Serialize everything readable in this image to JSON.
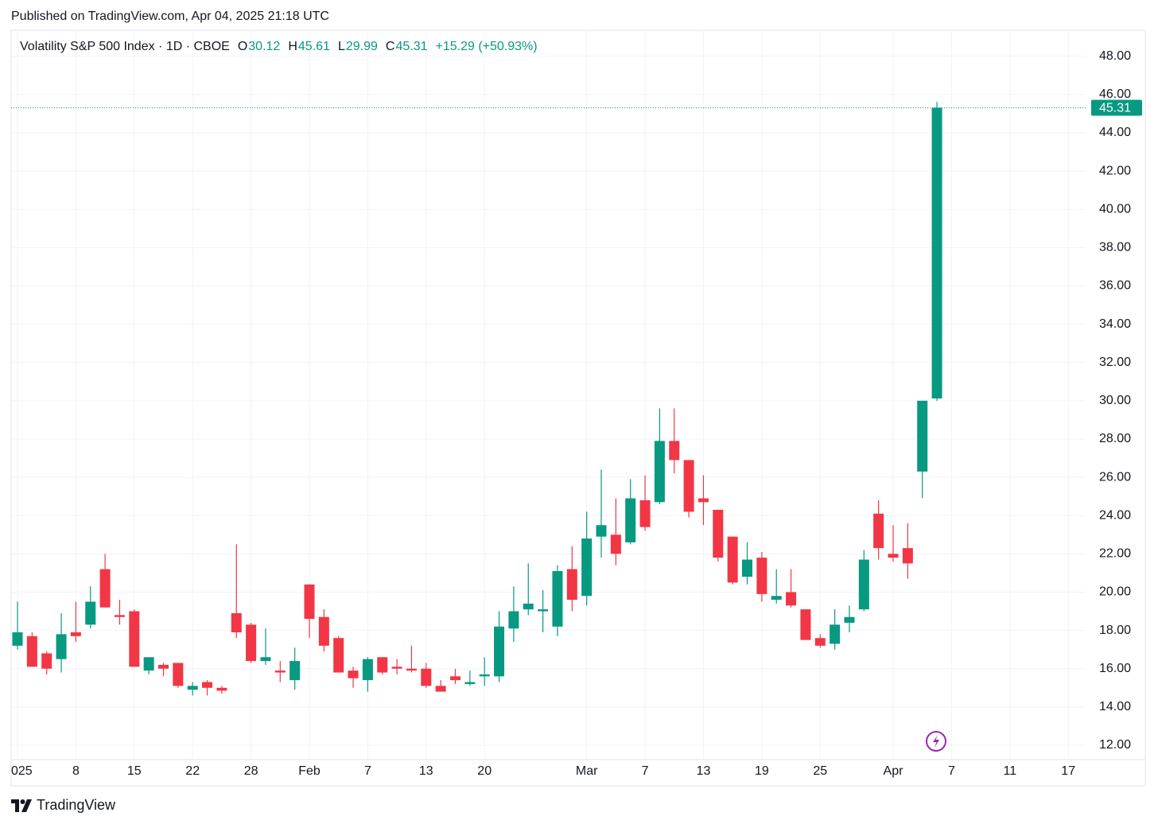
{
  "publisher": "Published on TradingView.com, Apr 04, 2025 21:18 UTC",
  "brand": "TradingView",
  "chart_data": {
    "type": "candlestick",
    "title": "Volatility S&P 500 Index · 1D · CBOE",
    "ohlc_letters": [
      "O",
      "H",
      "L",
      "C"
    ],
    "change": "+15.29 (+50.93%)",
    "up_color": "#089981",
    "down_color": "#f23645",
    "grid": true,
    "ylim": [
      11.25,
      49.36
    ],
    "yticks": [
      {
        "value": 12,
        "label": "12.00"
      },
      {
        "value": 14,
        "label": "14.00"
      },
      {
        "value": 16,
        "label": "16.00"
      },
      {
        "value": 18,
        "label": "18.00"
      },
      {
        "value": 20,
        "label": "20.00"
      },
      {
        "value": 22,
        "label": "22.00"
      },
      {
        "value": 24,
        "label": "24.00"
      },
      {
        "value": 26,
        "label": "26.00"
      },
      {
        "value": 28,
        "label": "28.00"
      },
      {
        "value": 30,
        "label": "30.00"
      },
      {
        "value": 32,
        "label": "32.00"
      },
      {
        "value": 34,
        "label": "34.00"
      },
      {
        "value": 36,
        "label": "36.00"
      },
      {
        "value": 38,
        "label": "38.00"
      },
      {
        "value": 40,
        "label": "40.00"
      },
      {
        "value": 42,
        "label": "42.00"
      },
      {
        "value": 44,
        "label": "44.00"
      },
      {
        "value": 46,
        "label": "46.00"
      },
      {
        "value": 48,
        "label": "48.00"
      }
    ],
    "categories": [
      "025",
      null,
      null,
      null,
      "8",
      null,
      null,
      null,
      "15",
      null,
      null,
      null,
      "22",
      null,
      null,
      null,
      "28",
      null,
      null,
      null,
      "Feb",
      null,
      null,
      null,
      "7",
      null,
      null,
      null,
      "13",
      null,
      null,
      null,
      "20",
      null,
      null,
      null,
      null,
      null,
      null,
      "Mar",
      null,
      null,
      null,
      "7",
      null,
      null,
      null,
      "13",
      null,
      null,
      null,
      "19",
      null,
      null,
      null,
      "25",
      null,
      null,
      null,
      null,
      "Apr",
      null,
      null,
      null,
      "7",
      null,
      null,
      null,
      "11",
      null,
      null,
      null,
      "17"
    ],
    "open": [
      17.2,
      17.7,
      16.8,
      16.5,
      17.9,
      18.3,
      21.2,
      18.8,
      19.0,
      15.9,
      16.2,
      16.3,
      14.9,
      15.3,
      15.0,
      18.9,
      18.3,
      16.4,
      15.9,
      15.4,
      20.4,
      18.7,
      17.6,
      15.9,
      15.4,
      16.6,
      16.1,
      16.0,
      16.0,
      15.1,
      15.6,
      15.2,
      15.6,
      15.6,
      18.1,
      19.1,
      19.0,
      18.2,
      21.2,
      19.8,
      22.9,
      23.0,
      22.6,
      24.8,
      24.7,
      27.9,
      26.9,
      24.9,
      24.3,
      22.9,
      20.8,
      21.8,
      19.6,
      20.0,
      19.1,
      17.6,
      17.3,
      18.4,
      19.1,
      24.1,
      22.0,
      22.3,
      26.3,
      30.12,
      null,
      null,
      null,
      null,
      null,
      null,
      null,
      null,
      null
    ],
    "high": [
      19.5,
      17.9,
      16.9,
      18.9,
      19.5,
      20.3,
      22.0,
      19.6,
      19.1,
      16.6,
      16.3,
      16.3,
      15.3,
      15.4,
      15.1,
      22.5,
      18.4,
      18.1,
      16.4,
      17.1,
      20.4,
      19.1,
      17.7,
      16.1,
      16.6,
      16.6,
      16.5,
      17.2,
      16.3,
      15.4,
      16.0,
      15.9,
      16.6,
      19.0,
      20.3,
      21.5,
      20.1,
      21.4,
      22.4,
      24.2,
      26.4,
      24.9,
      25.9,
      26.1,
      29.6,
      29.6,
      26.9,
      26.1,
      24.3,
      22.9,
      22.6,
      22.1,
      21.2,
      21.2,
      19.1,
      17.8,
      19.1,
      19.3,
      22.2,
      24.8,
      23.5,
      23.6,
      30.0,
      45.61,
      null,
      null,
      null,
      null,
      null,
      null,
      null,
      null,
      null
    ],
    "low": [
      17.0,
      16.1,
      15.7,
      15.8,
      17.4,
      18.1,
      19.2,
      18.3,
      16.1,
      15.7,
      15.6,
      15.0,
      14.6,
      14.6,
      14.7,
      17.6,
      16.3,
      16.2,
      15.3,
      14.9,
      17.6,
      16.9,
      15.8,
      15.0,
      14.8,
      15.7,
      15.7,
      15.8,
      15.0,
      14.8,
      15.2,
      15.1,
      15.1,
      15.3,
      17.4,
      18.8,
      17.9,
      17.7,
      19.0,
      19.3,
      21.8,
      21.4,
      22.5,
      23.2,
      24.6,
      26.2,
      23.9,
      23.5,
      21.6,
      20.4,
      20.4,
      19.5,
      19.4,
      19.2,
      17.5,
      17.1,
      17.0,
      17.9,
      19.0,
      21.7,
      21.6,
      20.7,
      24.9,
      29.99,
      null,
      null,
      null,
      null,
      null,
      null,
      null,
      null,
      null
    ],
    "close": [
      17.9,
      16.1,
      16.0,
      17.8,
      17.7,
      19.5,
      19.2,
      18.7,
      16.1,
      16.6,
      16.0,
      15.1,
      15.1,
      15.0,
      14.85,
      17.9,
      16.4,
      16.6,
      15.8,
      16.4,
      18.6,
      17.2,
      15.8,
      15.5,
      16.5,
      15.8,
      16.0,
      15.9,
      15.1,
      14.8,
      15.4,
      15.3,
      15.7,
      18.2,
      19.0,
      19.4,
      19.1,
      21.1,
      19.6,
      22.8,
      23.5,
      22.0,
      24.9,
      23.4,
      27.9,
      26.9,
      24.2,
      24.7,
      21.8,
      20.5,
      21.7,
      19.9,
      19.8,
      19.3,
      17.5,
      17.2,
      18.3,
      18.7,
      21.7,
      22.3,
      21.8,
      21.5,
      30.0,
      45.31,
      null,
      null,
      null,
      null,
      null,
      null,
      null,
      null,
      null
    ]
  }
}
